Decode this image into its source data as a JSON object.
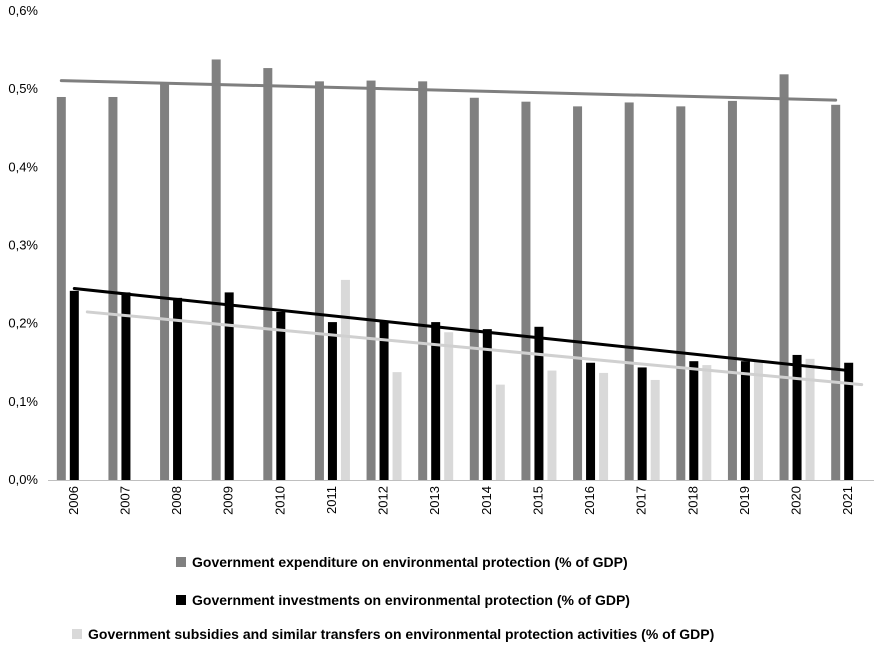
{
  "chart_data": {
    "type": "bar",
    "categories": [
      "2006",
      "2007",
      "2008",
      "2009",
      "2010",
      "2011",
      "2012",
      "2013",
      "2014",
      "2015",
      "2016",
      "2017",
      "2018",
      "2019",
      "2020",
      "2021"
    ],
    "ylim": [
      0,
      0.6
    ],
    "yticks": [
      0,
      0.1,
      0.2,
      0.3,
      0.4,
      0.5,
      0.6
    ],
    "ytick_labels": [
      "0,0%",
      "0,1%",
      "0,2%",
      "0,3%",
      "0,4%",
      "0,5%",
      "0,6%"
    ],
    "grid": false,
    "legend_placement": "bottom",
    "series": [
      {
        "name": "Government expenditure on environmental protection (% of GDP)",
        "color": "#808080",
        "values": [
          0.49,
          0.49,
          0.506,
          0.538,
          0.527,
          0.51,
          0.511,
          0.51,
          0.489,
          0.484,
          0.478,
          0.483,
          0.478,
          0.485,
          0.519,
          0.48
        ],
        "trendline": [
          0.511,
          0.486
        ]
      },
      {
        "name": "Government investments on environmental protection (% of GDP)",
        "color": "#000000",
        "values": [
          0.242,
          0.24,
          0.233,
          0.24,
          0.215,
          0.202,
          0.204,
          0.202,
          0.193,
          0.196,
          0.15,
          0.144,
          0.152,
          0.152,
          0.16,
          0.15
        ],
        "trendline": [
          0.245,
          0.14
        ]
      },
      {
        "name": "Government subsidies and similar transfers on environmental protection activities (% of GDP)",
        "color": "#d9d9d9",
        "values": [
          0,
          0,
          0,
          0,
          0,
          0.256,
          0.138,
          0.189,
          0.122,
          0.14,
          0.137,
          0.128,
          0.147,
          0.152,
          0.155,
          0
        ],
        "trendline": [
          0.215,
          0.122
        ]
      }
    ]
  }
}
